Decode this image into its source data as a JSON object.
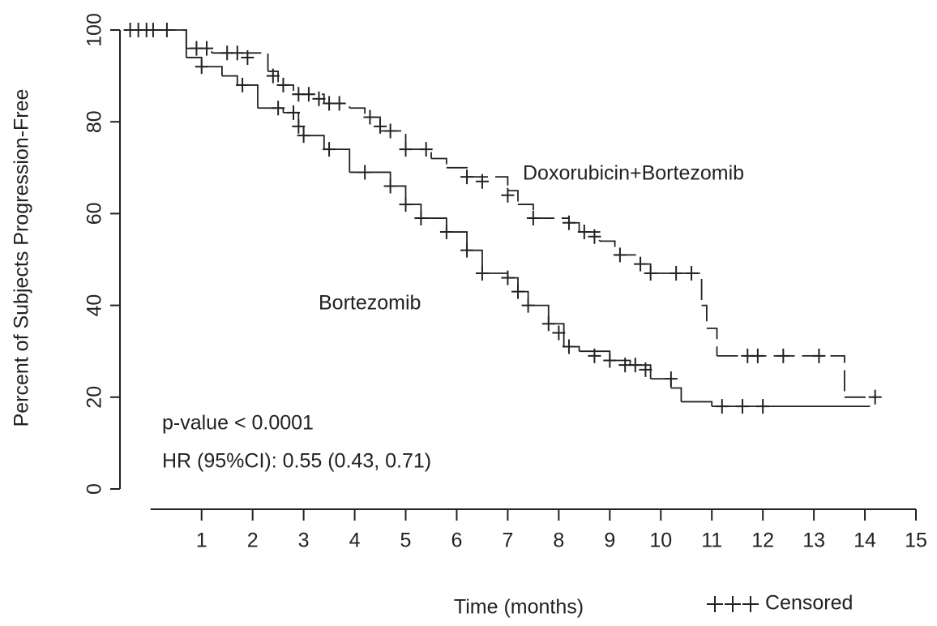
{
  "chart_data": {
    "type": "step",
    "y_label": "Percent of Subjects Progression-Free",
    "x_label": "Time (months)",
    "annotations": [
      "p-value < 0.0001",
      "HR (95%CI): 0.55 (0.43, 0.71)"
    ],
    "censored_legend": "Censored",
    "xlim": [
      -0.6,
      15
    ],
    "ylim": [
      0,
      100
    ],
    "xticks": [
      1,
      2,
      3,
      4,
      5,
      6,
      7,
      8,
      9,
      10,
      11,
      12,
      13,
      14,
      15
    ],
    "yticks": [
      0,
      20,
      40,
      60,
      80,
      100
    ],
    "series": [
      {
        "name": "Doxorubicin+Bortezomib",
        "color": "#222222",
        "line_style": "dashed",
        "x": [
          -0.48,
          0.7,
          1.2,
          2.3,
          2.5,
          2.8,
          3.4,
          3.9,
          4.2,
          4.5,
          5.0,
          5.5,
          5.8,
          6.2,
          7.0,
          7.2,
          7.5,
          8.2,
          8.4,
          8.8,
          9.1,
          9.6,
          9.8,
          10.8,
          10.9,
          11.1,
          13.6,
          14.2
        ],
        "values": [
          100,
          96,
          95,
          91,
          88,
          86,
          84,
          83,
          81,
          78,
          74,
          72,
          70,
          68,
          65,
          62,
          59,
          58,
          56,
          54,
          51,
          49,
          47,
          40,
          35,
          29,
          20,
          20
        ],
        "censored_x": [
          0.9,
          1.1,
          1.5,
          1.7,
          1.9,
          2.4,
          2.6,
          2.9,
          3.1,
          3.3,
          3.5,
          3.7,
          4.3,
          4.5,
          4.7,
          5.0,
          5.4,
          6.2,
          6.5,
          7.0,
          7.5,
          8.2,
          8.5,
          8.7,
          9.2,
          9.6,
          9.8,
          10.3,
          10.6,
          11.7,
          11.9,
          12.4,
          13.1,
          14.2
        ],
        "censored_y": [
          96,
          96,
          95,
          95,
          94,
          90,
          88,
          86,
          86,
          85,
          84,
          84,
          81,
          79,
          78,
          74,
          74,
          68,
          67,
          64,
          59,
          58,
          56,
          55,
          51,
          49,
          47,
          47,
          47,
          29,
          29,
          29,
          29,
          20
        ]
      },
      {
        "name": "Bortezomib",
        "color": "#222222",
        "line_style": "solid",
        "x": [
          -0.48,
          0.7,
          1.0,
          1.4,
          1.7,
          2.1,
          2.6,
          2.9,
          3.0,
          3.4,
          3.9,
          4.7,
          5.0,
          5.3,
          5.8,
          6.2,
          6.5,
          7.0,
          7.2,
          7.4,
          7.8,
          8.1,
          8.4,
          9.0,
          9.4,
          9.8,
          10.2,
          10.4,
          11.0,
          14.1
        ],
        "values": [
          100,
          94,
          92,
          90,
          88,
          83,
          82,
          79,
          77,
          74,
          69,
          66,
          62,
          59,
          56,
          52,
          47,
          46,
          43,
          40,
          36,
          31,
          30,
          28,
          27,
          24,
          22,
          19,
          18,
          18
        ],
        "censored_x": [
          -0.4,
          -0.24,
          -0.08,
          0.05,
          0.32,
          1.0,
          1.8,
          2.5,
          2.8,
          2.9,
          3.0,
          3.5,
          4.2,
          4.7,
          5.0,
          5.3,
          5.8,
          6.2,
          6.5,
          7.0,
          7.2,
          7.4,
          7.8,
          8.0,
          8.2,
          8.7,
          9.0,
          9.3,
          9.5,
          9.7,
          10.2,
          11.2,
          11.6,
          12.0
        ],
        "censored_y": [
          100,
          100,
          100,
          100,
          100,
          92,
          88,
          83,
          82,
          79,
          77,
          74,
          69,
          66,
          62,
          59,
          56,
          52,
          47,
          46,
          43,
          40,
          36,
          34,
          31,
          29,
          28,
          27,
          27,
          26,
          24,
          18,
          18,
          18
        ]
      }
    ]
  }
}
